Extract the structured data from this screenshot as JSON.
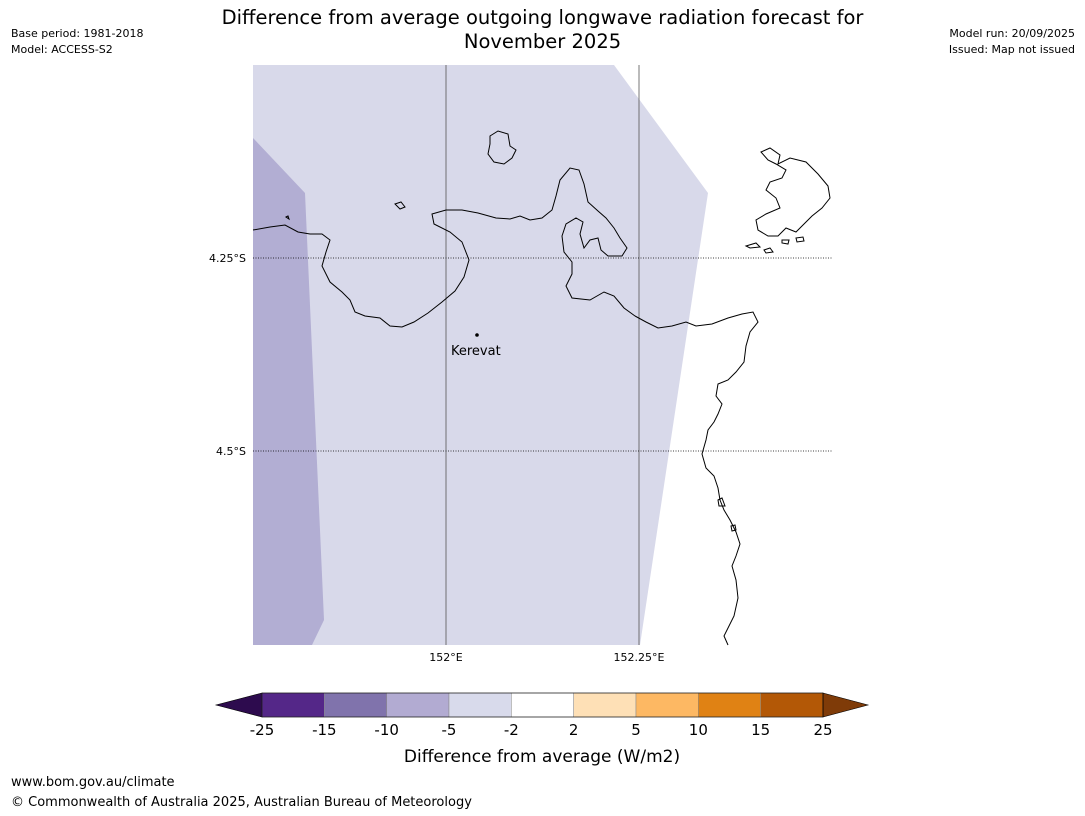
{
  "header": {
    "title_line1": "Difference from average outgoing longwave radiation forecast for",
    "title_line2": "November 2025",
    "base_period": "Base period: 1981-2018",
    "model": "Model: ACCESS-S2",
    "model_run": "Model run: 20/09/2025",
    "issued": "Issued: Map not issued"
  },
  "map": {
    "lat_labels": [
      "4.25°S",
      "4.5°S"
    ],
    "lon_labels": [
      "152°E",
      "152.25°E"
    ],
    "place": {
      "name": "Kerevat"
    },
    "fill_colors": {
      "light": "#d8d9ea",
      "medium": "#b2aed3"
    }
  },
  "legend": {
    "title": "Difference from average (W/m2)",
    "ticks": [
      "-25",
      "-15",
      "-10",
      "-5",
      "-2",
      "2",
      "5",
      "10",
      "15",
      "25"
    ],
    "under_color": "#2d0b4e",
    "over_color": "#7f3b08",
    "colors": [
      "#542788",
      "#8073ac",
      "#b2abd2",
      "#d8daeb",
      "#ffffff",
      "#fee0b6",
      "#fdb863",
      "#e08214",
      "#b35806"
    ]
  },
  "footer": {
    "url": "www.bom.gov.au/climate",
    "copyright": "© Commonwealth of Australia 2025, Australian Bureau of Meteorology"
  }
}
